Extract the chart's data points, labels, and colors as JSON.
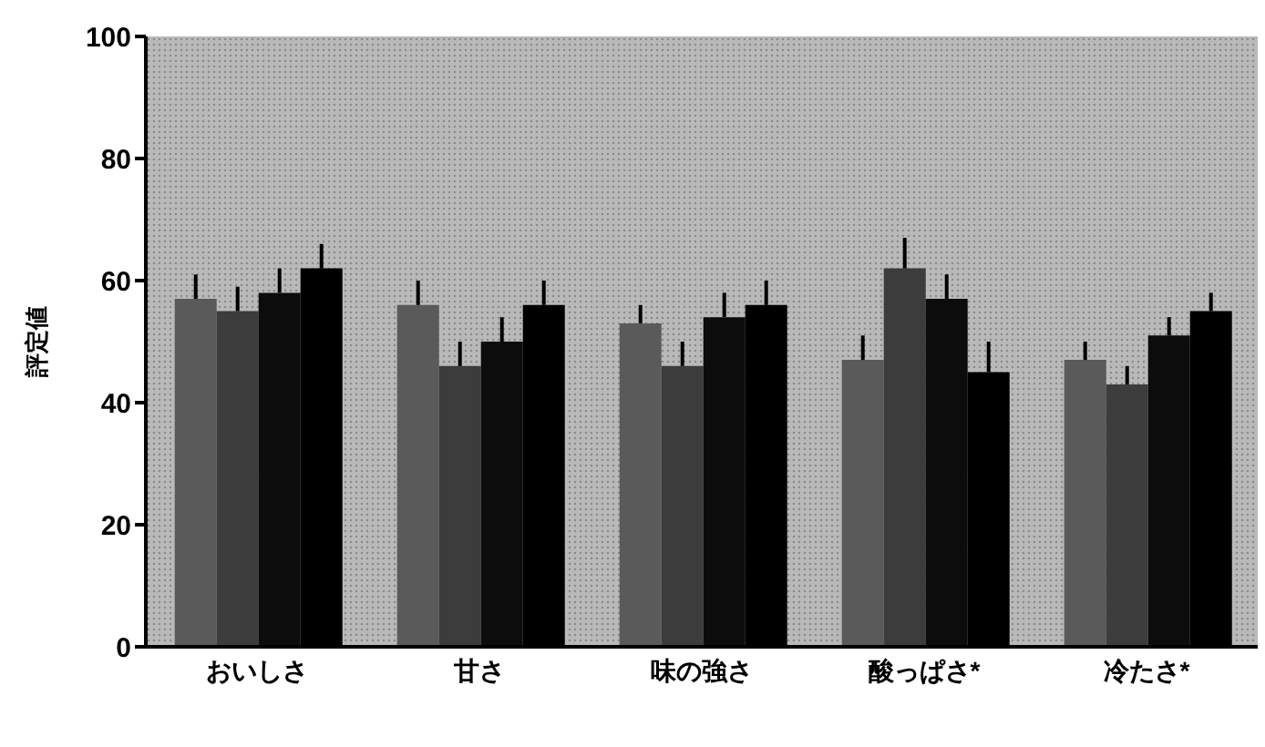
{
  "chart_data": {
    "type": "bar",
    "ylabel": "評定値",
    "categories": [
      "おいしさ",
      "甘さ",
      "味の強さ",
      "酸っぱさ*",
      "冷たさ*"
    ],
    "series": [
      {
        "color": "#5a5a5a",
        "values": [
          57,
          56,
          53,
          47,
          47
        ],
        "errors": [
          [
            57,
            61
          ],
          [
            56,
            60
          ],
          [
            53,
            56
          ],
          [
            47,
            51
          ],
          [
            47,
            50
          ]
        ]
      },
      {
        "color": "#3c3c3c",
        "values": [
          55,
          46,
          46,
          62,
          43
        ],
        "errors": [
          [
            55,
            59
          ],
          [
            46,
            50
          ],
          [
            46,
            50
          ],
          [
            62,
            67
          ],
          [
            43,
            46
          ]
        ]
      },
      {
        "color": "#0c0c0c",
        "values": [
          58,
          50,
          54,
          57,
          51
        ],
        "errors": [
          [
            58,
            62
          ],
          [
            50,
            54
          ],
          [
            54,
            58
          ],
          [
            57,
            61
          ],
          [
            51,
            54
          ]
        ]
      },
      {
        "color": "#000000",
        "values": [
          62,
          56,
          56,
          45,
          55
        ],
        "errors": [
          [
            62,
            66
          ],
          [
            56,
            60
          ],
          [
            56,
            60
          ],
          [
            45,
            50
          ],
          [
            55,
            58
          ]
        ]
      }
    ],
    "ylim": [
      0,
      100
    ],
    "yticks": [
      0,
      20,
      40,
      60,
      80,
      100
    ],
    "grid": false,
    "legend": false
  }
}
